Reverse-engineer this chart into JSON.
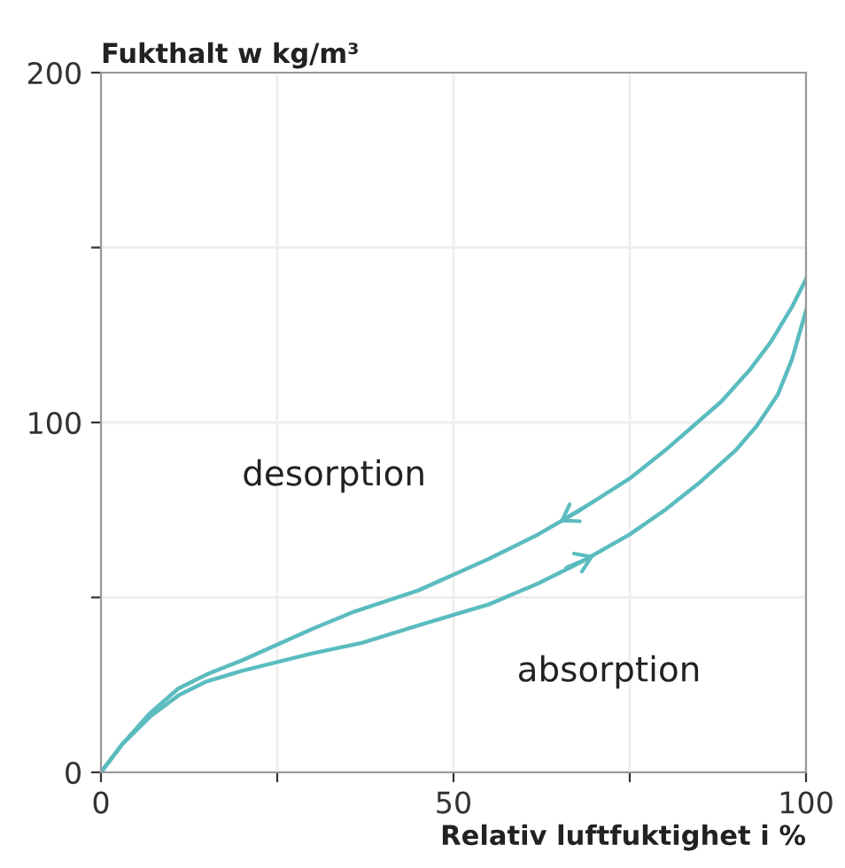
{
  "chart_data": {
    "type": "line",
    "title": "Fukthalt w kg/m³",
    "xlabel": "Relativ luftfuktighet i %",
    "annotations": [
      "desorption",
      "absorption"
    ],
    "xlim": [
      0,
      100
    ],
    "ylim": [
      0,
      200
    ],
    "xticks": [
      0,
      {
        "value": 25,
        "label": null
      },
      50,
      {
        "value": 75,
        "label": null
      },
      100
    ],
    "yticks": [
      0,
      {
        "value": 50,
        "label": null
      },
      100,
      {
        "value": 150,
        "label": null
      },
      200
    ],
    "grid": true,
    "legend": false,
    "marker": "none",
    "line_style": "solid",
    "series": [
      {
        "color": "#5bbcbf",
        "x": [
          0,
          3,
          7,
          11,
          15,
          20,
          30,
          36,
          45,
          55,
          62,
          68,
          75,
          80,
          84,
          88,
          92,
          95,
          98,
          100
        ],
        "values": [
          0,
          8,
          17,
          24,
          28,
          32,
          41,
          46,
          52,
          61,
          68,
          75,
          84,
          92,
          99,
          106,
          115,
          123,
          133,
          141
        ]
      },
      {
        "color": "#5bbcbf",
        "x": [
          0,
          3,
          7,
          11,
          15,
          20,
          30,
          37,
          45,
          55,
          62,
          68,
          75,
          80,
          85,
          90,
          93,
          96,
          98,
          100
        ],
        "values": [
          0,
          8,
          16,
          22,
          26,
          29,
          34,
          37,
          42,
          48,
          54,
          60,
          68,
          75,
          83,
          92,
          99,
          108,
          118,
          132
        ]
      }
    ]
  }
}
